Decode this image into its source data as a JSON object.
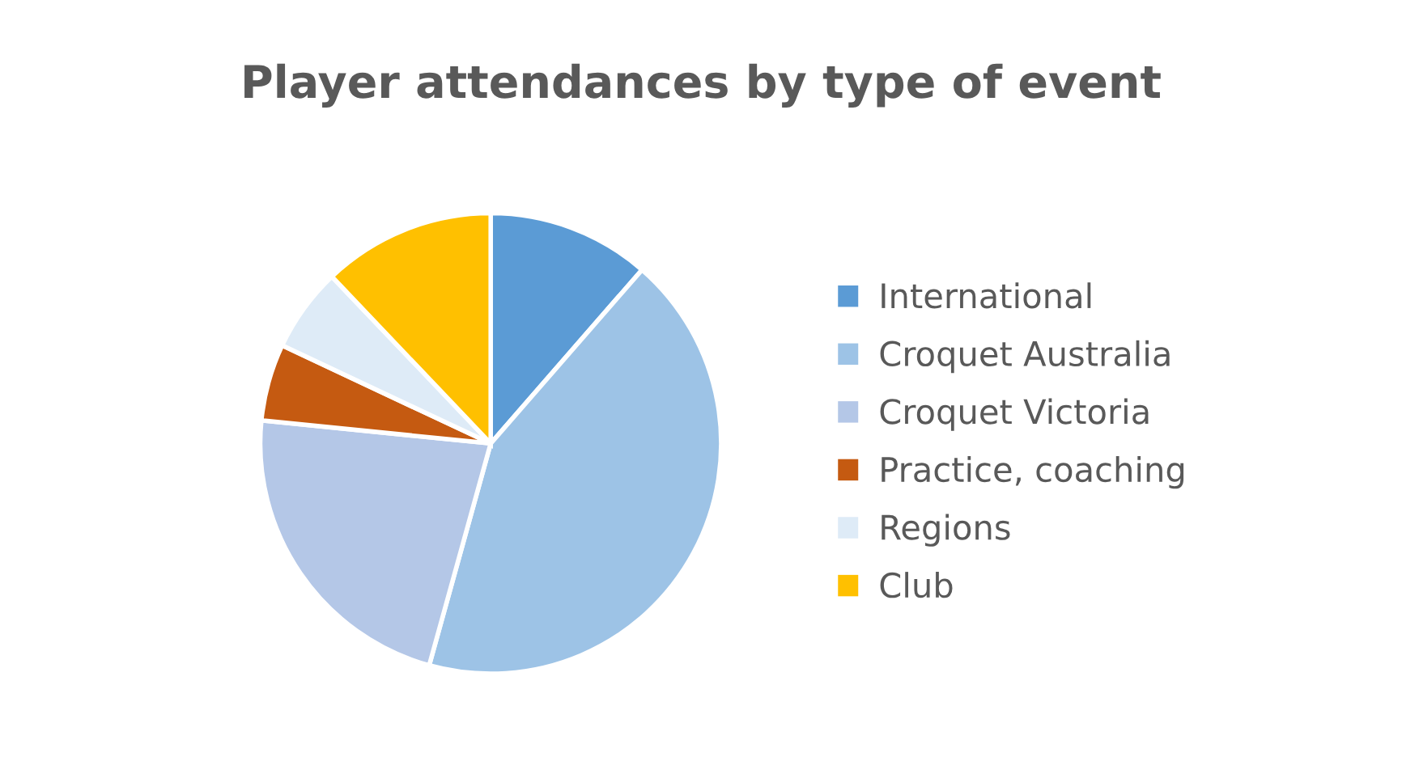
{
  "chart_data": {
    "type": "pie",
    "title": "Player attendances by type of event",
    "categories": [
      "International",
      "Croquet Australia",
      "Croquet Victoria",
      "Practice, coaching",
      "Regions",
      "Club"
    ],
    "values": [
      11.4,
      42.9,
      22.3,
      5.4,
      5.9,
      12.1
    ],
    "colors": [
      "#5b9bd5",
      "#9dc3e6",
      "#b4c7e7",
      "#c55a11",
      "#deebf7",
      "#ffc000"
    ],
    "legend": "right"
  }
}
